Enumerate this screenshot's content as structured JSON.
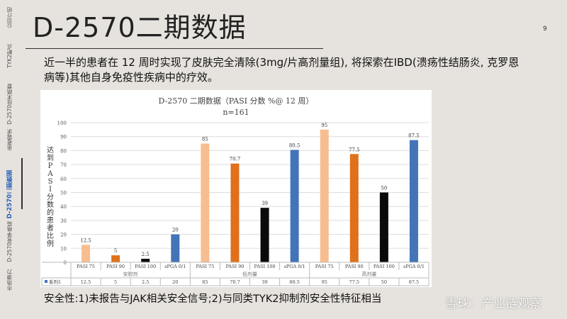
{
  "sidebar": {
    "items": [
      {
        "label": "公司介绍",
        "active": false
      },
      {
        "label": "TYK2靶点",
        "active": false
      },
      {
        "label": "D-2570技术精要",
        "active": false
      },
      {
        "label": "患者需求",
        "active": false
      },
      {
        "label": "D-2570二期数据",
        "active": true
      },
      {
        "label": "D-2570竞争格局",
        "active": false
      },
      {
        "label": "市场潜力",
        "active": false
      }
    ]
  },
  "header": {
    "title": "D-2570二期数据",
    "page_number": "9"
  },
  "lead_text": "近一半的患者在 12 周时实现了皮肤完全清除(3mg/片高剂量组), 将探索在IBD(溃疡性结肠炎, 克罗恩病等)其他自身免疫性疾病中的疗效。",
  "safety_text": "安全性:1)未报告与JAK相关安全信号;2)与同类TYK2抑制剂安全性特征相当",
  "watermark": "雪球：产业链观察",
  "chart_data": {
    "type": "bar",
    "title": "D-2570 二期数据（PASI 分数 %@ 12 周）",
    "subtitle": "n=161",
    "ylabel": "达到PASI分数的患者比例",
    "ylim": [
      0,
      100
    ],
    "yticks": [
      0,
      10,
      20,
      30,
      40,
      50,
      60,
      70,
      80,
      90,
      100
    ],
    "groups": [
      "安慰剂",
      "低剂量",
      "高剂量"
    ],
    "categories": [
      "PASI 75",
      "PASI 90",
      "PASI 100",
      "sPGA 0/1",
      "PASI 75",
      "PASI 90",
      "PASI 100",
      "sPGA 0/1",
      "PASI 75",
      "PASI 90",
      "PASI 100",
      "sPGA 0/1"
    ],
    "series": [
      {
        "name": "系列1",
        "values": [
          12.5,
          5,
          2.5,
          20,
          85,
          70.7,
          39,
          80.5,
          95,
          77.5,
          50,
          87.5
        ]
      }
    ],
    "value_labels": [
      "12.5",
      "5",
      "2.5",
      "20",
      "85",
      "70.7",
      "39",
      "80.5",
      "95",
      "77.5",
      "50",
      "87.5"
    ],
    "colors": {
      "PASI 75": "#f8bd8f",
      "PASI 90": "#e0701c",
      "PASI 100": "#0a0a0a",
      "sPGA 0/1": "#4374b8",
      "legend": "#4374b8"
    },
    "grid": true
  }
}
